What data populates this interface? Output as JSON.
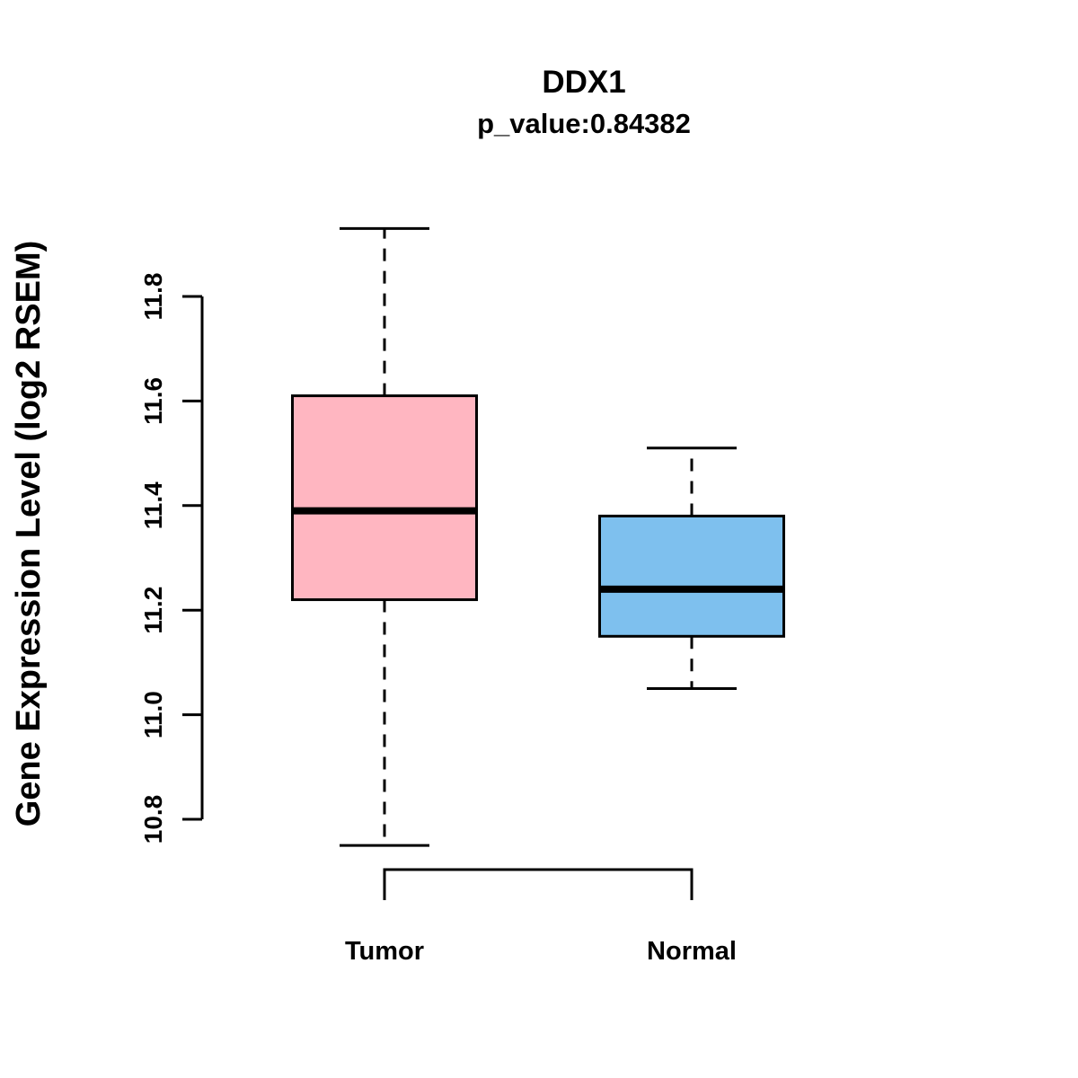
{
  "header": {
    "title": "DDX1",
    "subtitle": "p_value:0.84382"
  },
  "chart_data": {
    "type": "boxplot",
    "title": "DDX1",
    "subtitle": "p_value:0.84382",
    "ylabel": "Gene Expression Level (log2 RSEM)",
    "xlabel": "",
    "categories": [
      "Tumor",
      "Normal"
    ],
    "series": [
      {
        "name": "Tumor",
        "color": "#FFB6C1",
        "lower_whisker": 10.75,
        "q1": 11.22,
        "median": 11.39,
        "q3": 11.61,
        "upper_whisker": 11.93
      },
      {
        "name": "Normal",
        "color": "#7EC0EE",
        "lower_whisker": 11.05,
        "q1": 11.15,
        "median": 11.24,
        "q3": 11.38,
        "upper_whisker": 11.51
      }
    ],
    "yticks": [
      "10.8",
      "11.0",
      "11.2",
      "11.4",
      "11.6",
      "11.8"
    ],
    "ylim": [
      10.8,
      11.8
    ],
    "grid": false,
    "legend": "none"
  }
}
